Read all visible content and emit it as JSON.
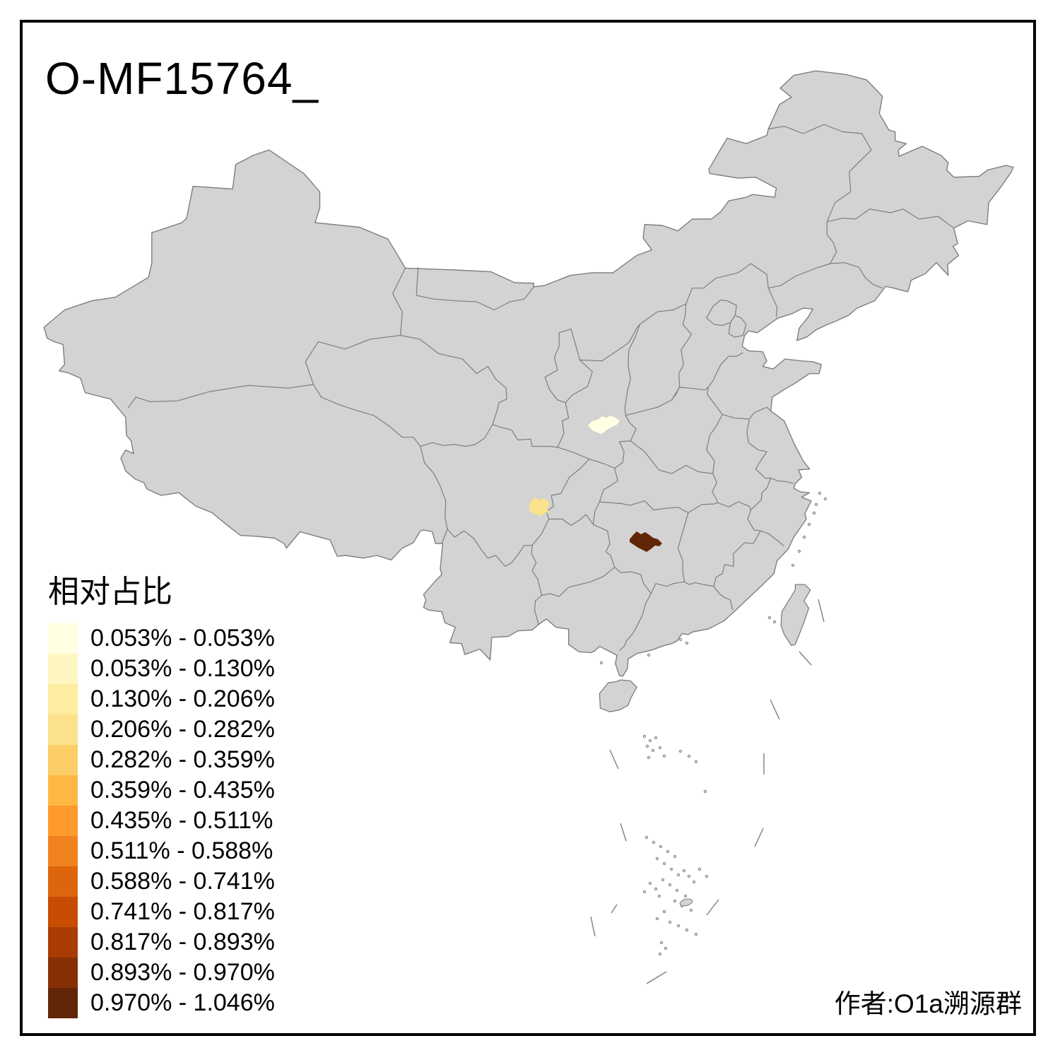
{
  "title": "O-MF15764_",
  "credit": "作者:O1a溯源群",
  "legend": {
    "title": "相对占比",
    "items": [
      {
        "color": "#FFFFE3",
        "label": "0.053% - 0.053%"
      },
      {
        "color": "#FEF6C0",
        "label": "0.053% - 0.130%"
      },
      {
        "color": "#FEECA0",
        "label": "0.130% - 0.206%"
      },
      {
        "color": "#FDE28C",
        "label": "0.206% - 0.282%"
      },
      {
        "color": "#FDCE67",
        "label": "0.282% - 0.359%"
      },
      {
        "color": "#FDB844",
        "label": "0.359% - 0.435%"
      },
      {
        "color": "#FD9A2B",
        "label": "0.435% - 0.511%"
      },
      {
        "color": "#F08220",
        "label": "0.511% - 0.588%"
      },
      {
        "color": "#DD660D",
        "label": "0.588% - 0.741%"
      },
      {
        "color": "#C84D03",
        "label": "0.741% - 0.817%"
      },
      {
        "color": "#A83C04",
        "label": "0.817% - 0.893%"
      },
      {
        "color": "#863005",
        "label": "0.893% - 0.970%"
      },
      {
        "color": "#622507",
        "label": "0.970% - 1.046%"
      }
    ]
  },
  "map": {
    "land_fill": "#D3D3D3",
    "border_color": "#7E7E7E",
    "frame_color": "#000000",
    "background": "#FFFFFF"
  },
  "chart_data": {
    "type": "heatmap",
    "subtype": "choropleth map of China, prefecture level",
    "title": "O-MF15764_",
    "legend_title": "相对占比",
    "unit": "percent",
    "value_range": [
      0.053,
      1.046
    ],
    "legend_position": "bottom-left",
    "default_region_fill": "#D3D3D3",
    "bins": [
      {
        "range": "0.053% - 0.053%",
        "color": "#FFFFE3"
      },
      {
        "range": "0.053% - 0.130%",
        "color": "#FEF6C0"
      },
      {
        "range": "0.130% - 0.206%",
        "color": "#FEECA0"
      },
      {
        "range": "0.206% - 0.282%",
        "color": "#FDE28C"
      },
      {
        "range": "0.282% - 0.359%",
        "color": "#FDCE67"
      },
      {
        "range": "0.359% - 0.435%",
        "color": "#FDB844"
      },
      {
        "range": "0.435% - 0.511%",
        "color": "#FD9A2B"
      },
      {
        "range": "0.511% - 0.588%",
        "color": "#F08220"
      },
      {
        "range": "0.588% - 0.741%",
        "color": "#DD660D"
      },
      {
        "range": "0.741% - 0.817%",
        "color": "#C84D03"
      },
      {
        "range": "0.817% - 0.893%",
        "color": "#A83C04"
      },
      {
        "range": "0.893% - 0.970%",
        "color": "#863005"
      },
      {
        "range": "0.970% - 1.046%",
        "color": "#622507"
      }
    ],
    "highlighted_regions": [
      {
        "map_position": "south Shaanxi area (~x855,y602)",
        "value_bin": "0.053% - 0.053%",
        "color": "#FFFFE3"
      },
      {
        "map_position": "south-central Sichuan area (~x763,y718)",
        "value_bin": "0.206% - 0.282%",
        "color": "#FDE28C"
      },
      {
        "map_position": "central Hunan area (~x914,y767)",
        "value_bin": "0.970% - 1.046%",
        "color": "#622507"
      }
    ],
    "annotations": [
      "作者:O1a溯源群"
    ]
  }
}
